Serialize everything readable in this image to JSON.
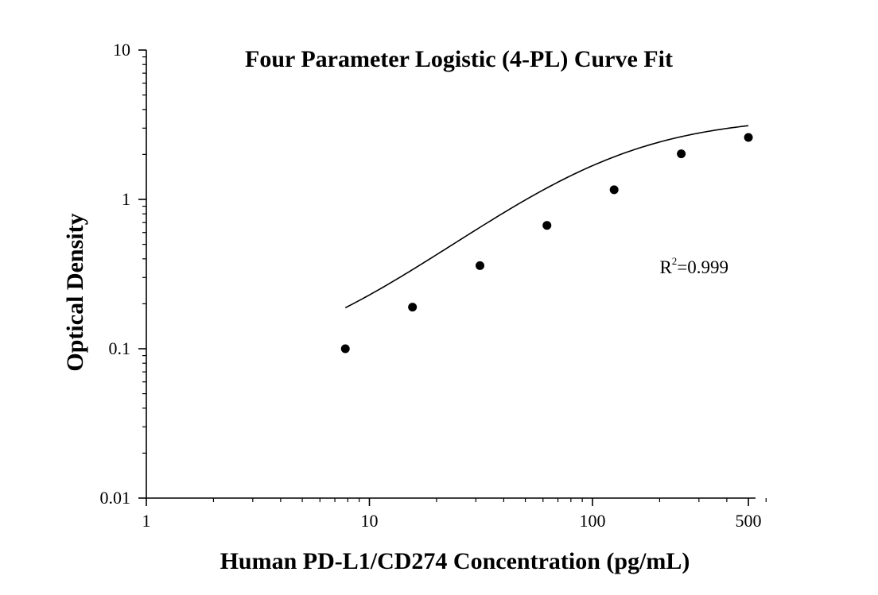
{
  "chart_data": {
    "type": "scatter",
    "title": "Four Parameter Logistic (4-PL) Curve Fit",
    "xlabel": "Human PD-L1/CD274 Concentration (pg/mL)",
    "ylabel": "Optical Density",
    "x_scale": "log",
    "y_scale": "log",
    "xlim": [
      1,
      600
    ],
    "ylim": [
      0.01,
      10
    ],
    "x_ticks": [
      1,
      10,
      100,
      500
    ],
    "x_tick_labels": [
      "1",
      "10",
      "100",
      "500"
    ],
    "y_ticks": [
      0.01,
      0.1,
      1,
      10
    ],
    "y_tick_labels": [
      "0.01",
      "0.1",
      "1",
      "10"
    ],
    "grid": false,
    "series": [
      {
        "type": "scatter",
        "x": [
          7.8,
          15.6,
          31.3,
          62.5,
          125,
          250,
          500
        ],
        "y": [
          0.1,
          0.19,
          0.36,
          0.67,
          1.16,
          2.02,
          2.6
        ]
      },
      {
        "type": "line",
        "fit": "4-PL",
        "x_range": [
          7.8,
          500
        ],
        "params": {
          "A": 0.07,
          "B": 1.25,
          "C": 115,
          "D": 3.6
        }
      }
    ],
    "annotations": [
      {
        "text": "R",
        "superscript": "2",
        "value_text": "=0.999",
        "x": 200,
        "y": 0.32
      }
    ]
  }
}
